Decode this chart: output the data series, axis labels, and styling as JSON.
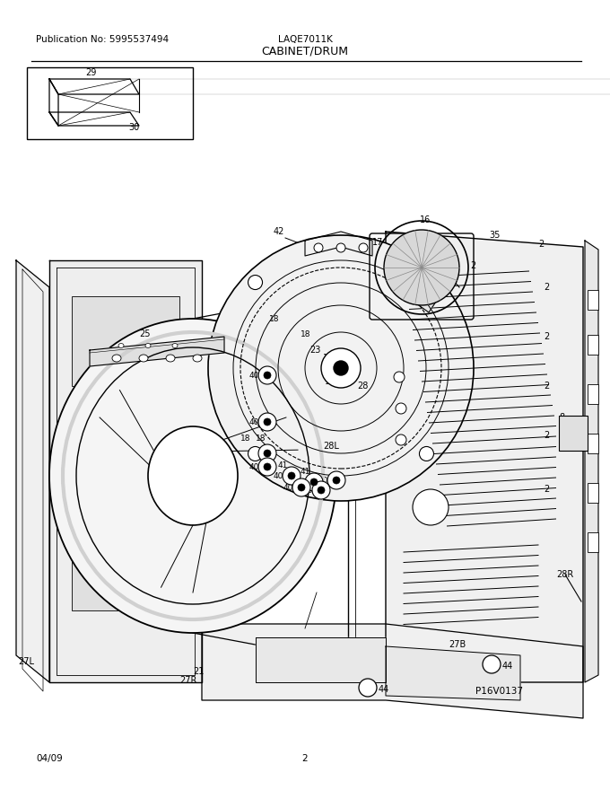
{
  "title": "CABINET/DRUM",
  "pub_no": "Publication No: 5995537494",
  "model": "LAQE7011K",
  "date": "04/09",
  "page": "2",
  "watermark": "P16V0137",
  "background_color": "#ffffff",
  "line_color": "#000000",
  "text_color": "#000000"
}
